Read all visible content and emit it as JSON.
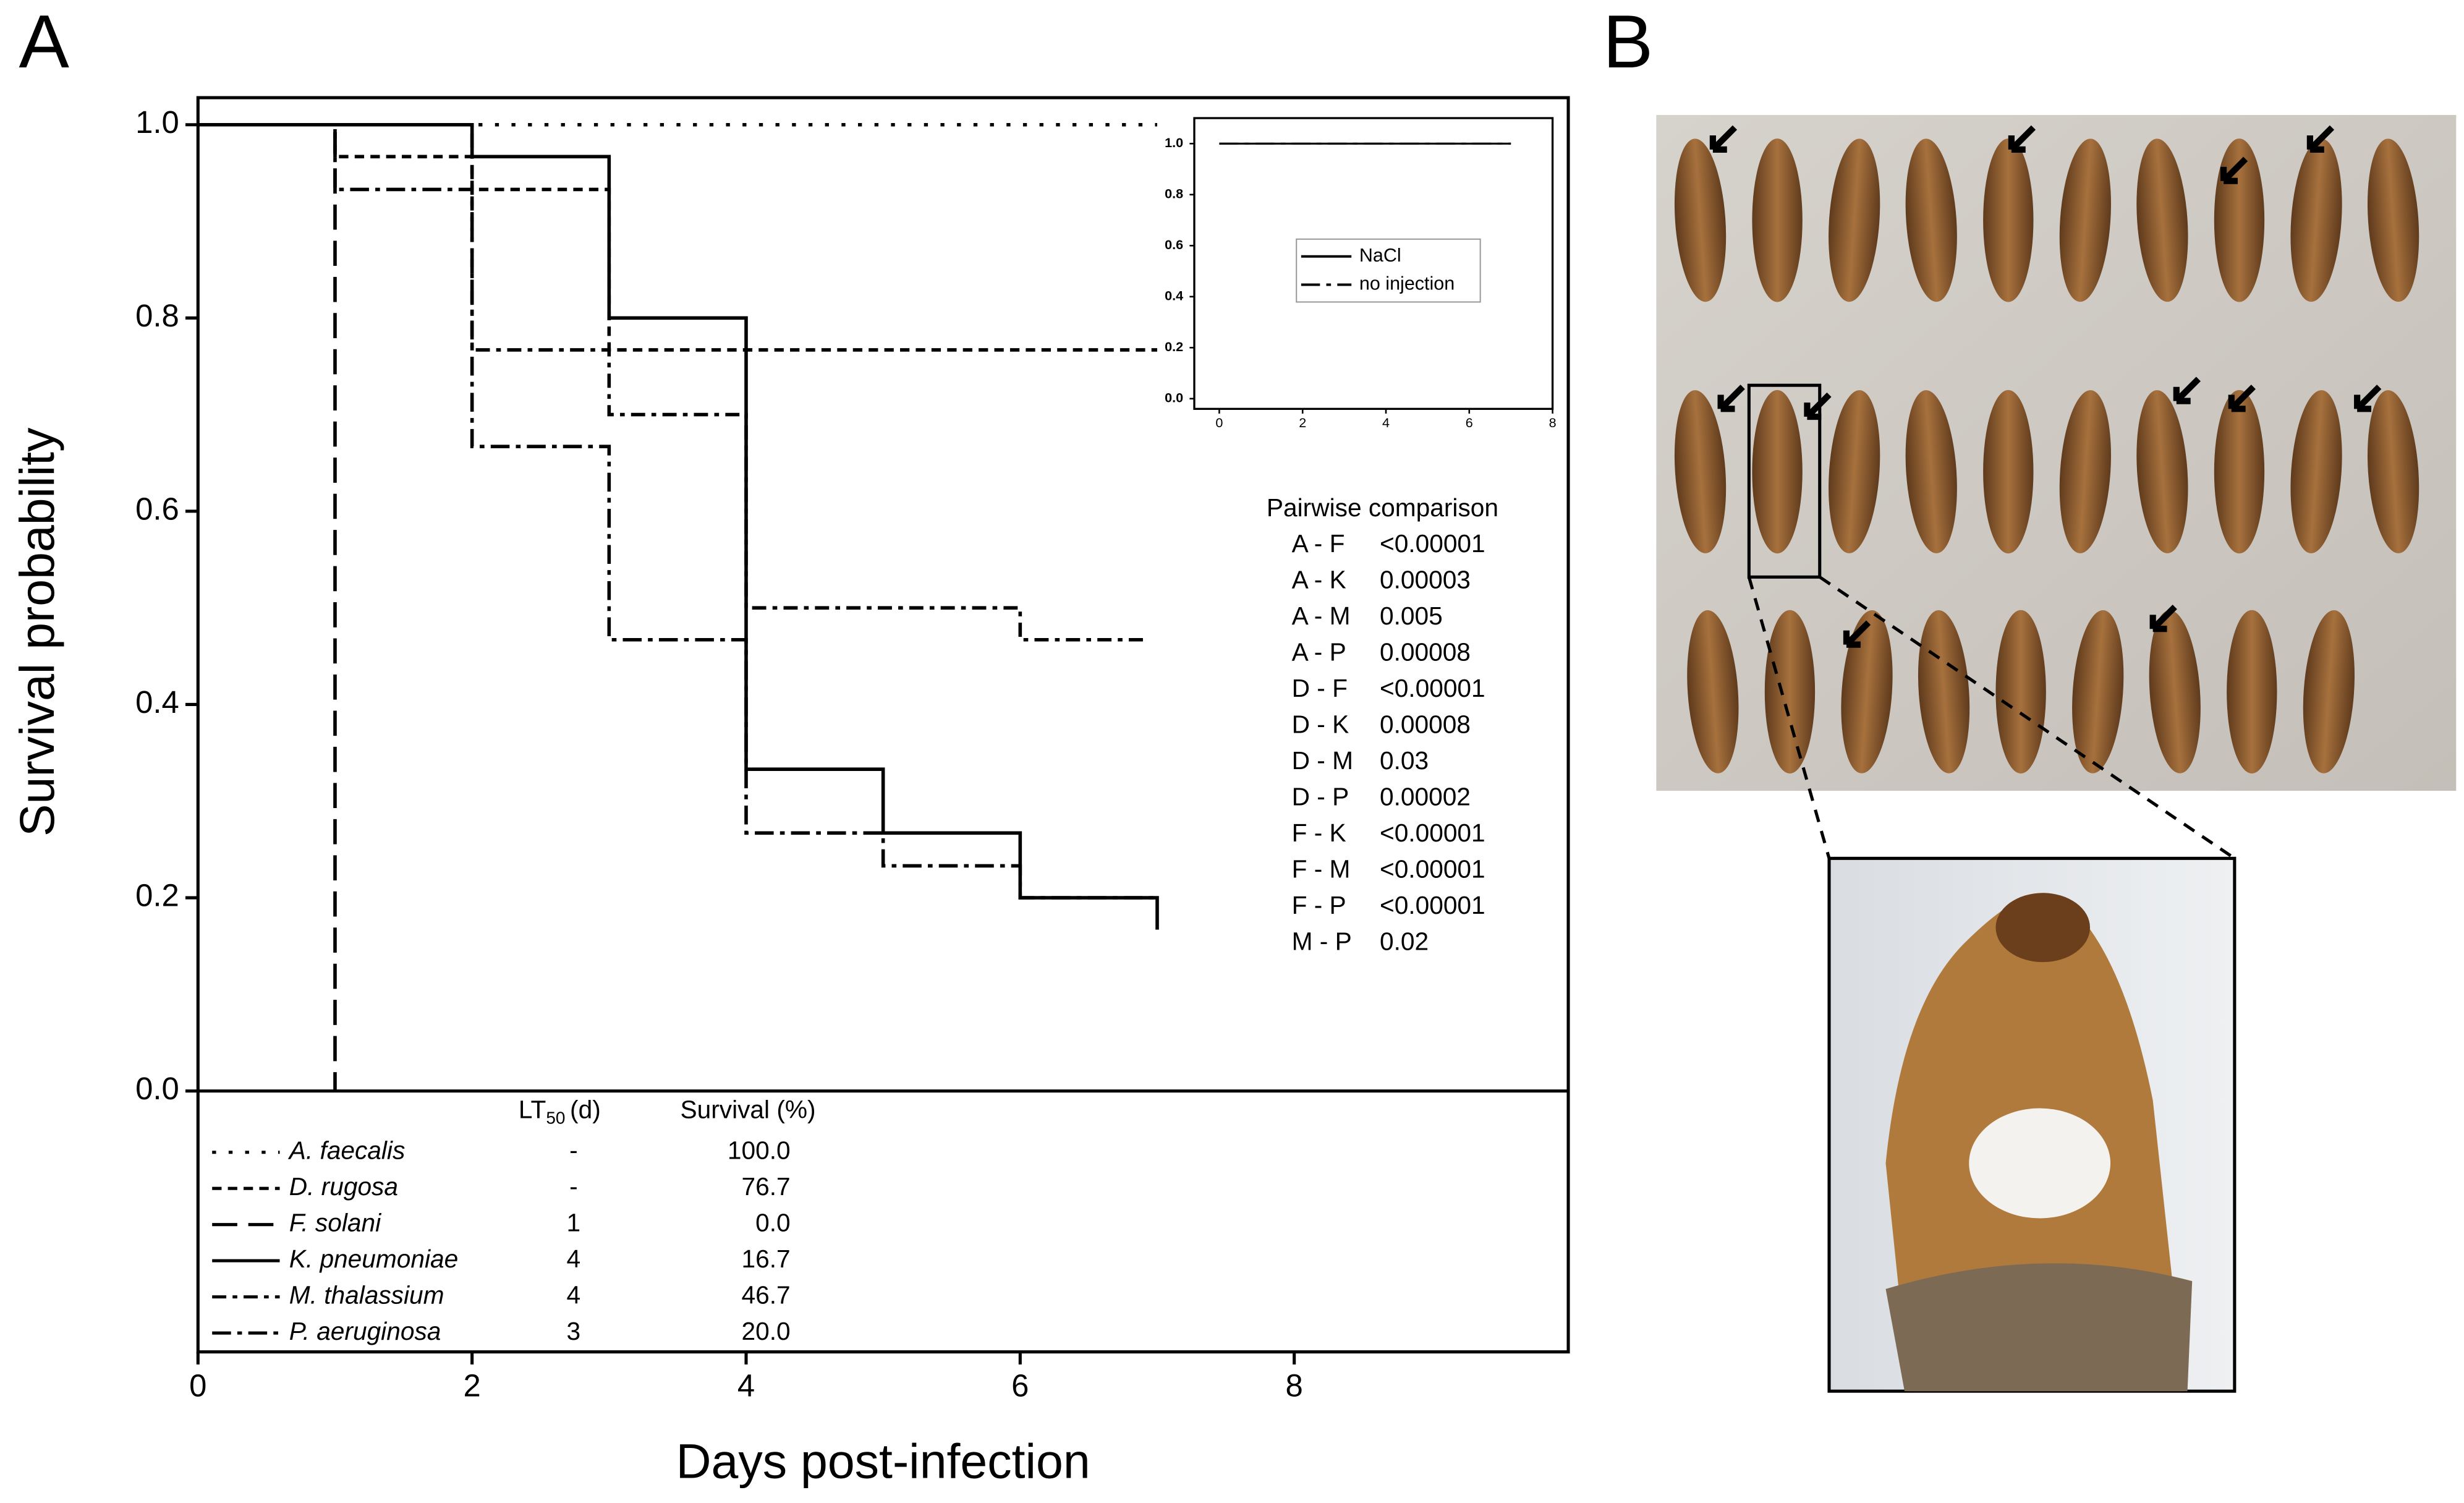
{
  "panel_labels": [
    "A",
    "B"
  ],
  "chart_data": [
    {
      "type": "step",
      "xlabel": "Days post-infection",
      "ylabel": "Survival probability",
      "xlim": [
        0,
        10
      ],
      "ylim": [
        -0.27,
        1.028
      ],
      "xticks": [
        0,
        2,
        4,
        6,
        8
      ],
      "yticks": [
        {
          "value": 0,
          "label": "0.0"
        },
        {
          "value": 0.2,
          "label": "0.2"
        },
        {
          "value": 0.4,
          "label": "0.4"
        },
        {
          "value": 0.6,
          "label": "0.6"
        },
        {
          "value": 0.8,
          "label": "0.8"
        },
        {
          "value": 1,
          "label": "1.0"
        }
      ],
      "series": [
        {
          "name": "A. faecalis",
          "color": "#000000",
          "style": "dotted",
          "x": [
            0,
            7
          ],
          "values": [
            1,
            1
          ]
        },
        {
          "name": "D. rugosa",
          "color": "#000000",
          "style": "dashed",
          "x": [
            0,
            1,
            2,
            3,
            7
          ],
          "values": [
            1,
            0.967,
            0.933,
            0.767,
            0.767
          ]
        },
        {
          "name": "F. solani",
          "color": "#000000",
          "style": "long-dashed",
          "x": [
            0,
            1
          ],
          "values": [
            1,
            0
          ]
        },
        {
          "name": "K. pneumoniae",
          "color": "#000000",
          "style": "solid",
          "x": [
            0,
            2,
            3,
            4,
            5,
            6,
            7
          ],
          "values": [
            1,
            0.967,
            0.8,
            0.333,
            0.267,
            0.2,
            0.167
          ]
        },
        {
          "name": "M. thalassium",
          "color": "#000000",
          "style": "dash-circle",
          "x": [
            0,
            2,
            3,
            4,
            6,
            6.9
          ],
          "values": [
            1,
            0.767,
            0.7,
            0.5,
            0.467,
            0.467
          ]
        },
        {
          "name": "P. aeruginosa",
          "color": "#000000",
          "style": "dash-dot",
          "x": [
            0,
            1,
            2,
            3,
            4,
            5,
            6,
            7
          ],
          "values": [
            1,
            0.933,
            0.667,
            0.467,
            0.267,
            0.233,
            0.2,
            0.2
          ]
        }
      ],
      "legend_table": {
        "lt50_header": {
          "main": "LT",
          "sub": "50",
          "unit": "(d)"
        },
        "survival_header": "Survival (%)",
        "lt50": [
          "-",
          "-",
          "1",
          "4",
          "4",
          "3"
        ],
        "survival": [
          "100.0",
          "76.7",
          "0.0",
          "16.7",
          "46.7",
          "20.0"
        ]
      },
      "pairwise": {
        "title": "Pairwise comparison",
        "rows": [
          [
            "A - F",
            "<0.00001"
          ],
          [
            "A - K",
            "0.00003"
          ],
          [
            "A - M",
            "0.005"
          ],
          [
            "A - P",
            "0.00008"
          ],
          [
            "D - F",
            "<0.00001"
          ],
          [
            "D - K",
            "0.00008"
          ],
          [
            "D - M",
            "0.03"
          ],
          [
            "D - P",
            "0.00002"
          ],
          [
            "F - K",
            "<0.00001"
          ],
          [
            "F - M",
            "<0.00001"
          ],
          [
            "F - P",
            "<0.00001"
          ],
          [
            "M - P",
            "0.02"
          ]
        ]
      }
    },
    {
      "type": "step",
      "xlim": [
        -0.6,
        8
      ],
      "ylim": [
        -0.04,
        1.1
      ],
      "xticks": [
        0,
        2,
        4,
        6,
        8
      ],
      "yticks": [
        {
          "value": 0,
          "label": "0.0"
        },
        {
          "value": 0.2,
          "label": "0.2"
        },
        {
          "value": 0.4,
          "label": "0.4"
        },
        {
          "value": 0.6,
          "label": "0.6"
        },
        {
          "value": 0.8,
          "label": "0.8"
        },
        {
          "value": 1,
          "label": "1.0"
        }
      ],
      "series": [
        {
          "name": "NaCl",
          "color": "#000000",
          "style": "solid",
          "x": [
            0,
            7
          ],
          "values": [
            1,
            1
          ]
        },
        {
          "name": "no injection",
          "color": "#000000",
          "style": "dash-dot",
          "x": [
            0,
            7
          ],
          "values": [
            1,
            1
          ]
        }
      ]
    }
  ]
}
